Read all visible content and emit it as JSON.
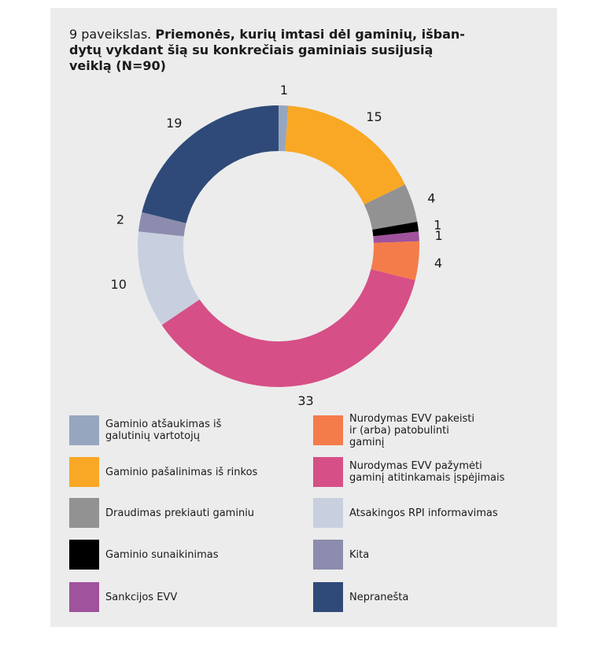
{
  "figure": {
    "title_prefix": "9 paveikslas.",
    "title_main": "Priemonės, kurių imtasi dėl gaminių, išban-dytų vykdant šią su konkrečiais gaminiais susijusią veiklą (N=90)"
  },
  "chart_data": {
    "type": "pie",
    "donut": true,
    "title": "9 paveikslas. Priemonės, kurių imtasi dėl gaminių, išban-dytų vykdant šią su konkrečiais gaminiais susijusią veiklą (N=90)",
    "total": 90,
    "legend_placement": "bottom",
    "slices": [
      {
        "name": "Gaminio atšaukimas iš galutinių vartotojų",
        "value": 1,
        "color": "#97a6bf"
      },
      {
        "name": "Gaminio pašalinimas iš rinkos",
        "value": 15,
        "color": "#f9a825"
      },
      {
        "name": "Draudimas prekiauti gaminiu",
        "value": 4,
        "color": "#929292"
      },
      {
        "name": "Gaminio sunaikinimas",
        "value": 1,
        "color": "#000000"
      },
      {
        "name": "Sankcijos EVV",
        "value": 1,
        "color": "#a0529c"
      },
      {
        "name": "Nurodymas EVV pakeisti ir (arba) patobulinti gaminį",
        "value": 4,
        "color": "#f47c4a"
      },
      {
        "name": "Nurodymas EVV pažymėti gaminį atitinkamais įspėjimais",
        "value": 33,
        "color": "#d64f86"
      },
      {
        "name": "Atsakingos RPI informavimas",
        "value": 10,
        "color": "#c8cfdf"
      },
      {
        "name": "Kita",
        "value": 2,
        "color": "#8c8cae"
      },
      {
        "name": "Nepranešta",
        "value": 19,
        "color": "#2f4a78"
      }
    ]
  },
  "legend": [
    {
      "label": "Gaminio atšaukimas iš\ngalutinių vartotojų",
      "color": "#97a6bf"
    },
    {
      "label": "Nurodymas EVV pakeisti\nir (arba) patobulinti\ngaminį",
      "color": "#f47c4a"
    },
    {
      "label": "Gaminio pašalinimas iš rinkos",
      "color": "#f9a825"
    },
    {
      "label": "Nurodymas EVV pažymėti\ngaminį atitinkamais įspėjimais",
      "color": "#d64f86"
    },
    {
      "label": "Draudimas prekiauti gaminiu",
      "color": "#929292"
    },
    {
      "label": "Atsakingos RPI informavimas",
      "color": "#c8cfdf"
    },
    {
      "label": "Gaminio sunaikinimas",
      "color": "#000000"
    },
    {
      "label": "Kita",
      "color": "#8c8cae"
    },
    {
      "label": "Sankcijos EVV",
      "color": "#a0529c"
    },
    {
      "label": "Nepranešta",
      "color": "#2f4a78"
    }
  ]
}
